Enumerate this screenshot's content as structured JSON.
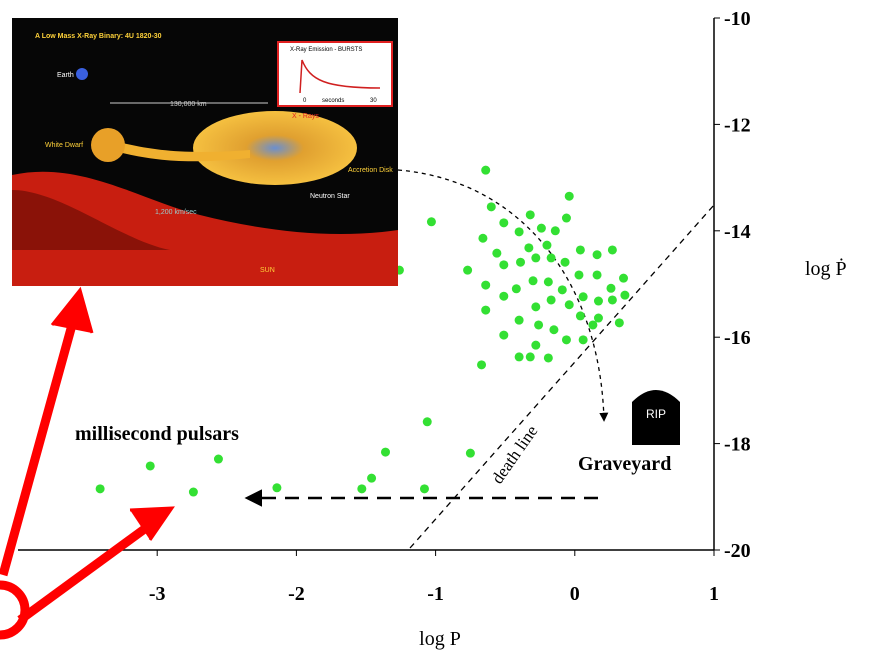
{
  "chart_data": {
    "type": "scatter",
    "xlabel": "log P",
    "ylabel": "log Ṗ",
    "xlim": [
      -4,
      1
    ],
    "ylim": [
      -20,
      -10
    ],
    "xticks": [
      -3,
      -2,
      -1,
      0,
      1
    ],
    "yticks": [
      -10,
      -12,
      -14,
      -16,
      -18,
      -20
    ],
    "x": [
      -3.41,
      -3.05,
      -2.74,
      -2.56,
      -2.14,
      -1.53,
      -1.46,
      -1.36,
      -1.06,
      -1.08,
      -0.75,
      -1.26,
      -0.64,
      -0.6,
      -1.03,
      -0.77,
      -0.66,
      -0.56,
      -0.64,
      -0.51,
      -0.4,
      -0.32,
      -0.24,
      -0.14,
      -0.06,
      -0.2,
      -0.04,
      -0.33,
      -0.51,
      -0.39,
      -0.28,
      -0.17,
      -0.07,
      0.04,
      0.16,
      0.27,
      -0.64,
      -0.51,
      -0.42,
      -0.3,
      -0.19,
      -0.09,
      0.03,
      0.16,
      0.26,
      0.35,
      -0.51,
      -0.4,
      -0.28,
      -0.17,
      -0.04,
      0.06,
      0.17,
      0.27,
      0.32,
      0.17,
      0.04,
      -0.26,
      -0.15,
      -0.06,
      0.06,
      -0.4,
      -0.28,
      -0.19,
      0.13,
      0.36,
      -0.67,
      -0.32
    ],
    "series": [
      {
        "color": "#33e033",
        "values": [
          -18.85,
          -18.42,
          -18.91,
          -18.29,
          -18.83,
          -18.85,
          -18.65,
          -18.16,
          -17.59,
          -18.85,
          -18.18,
          -14.74,
          -12.86,
          -13.55,
          -13.83,
          -14.74,
          -14.14,
          -14.42,
          -15.02,
          -13.85,
          -14.02,
          -13.7,
          -13.95,
          -14.0,
          -13.76,
          -14.27,
          -13.35,
          -14.32,
          -14.64,
          -14.59,
          -14.51,
          -14.51,
          -14.59,
          -14.36,
          -14.45,
          -14.36,
          -15.49,
          -15.23,
          -15.09,
          -14.94,
          -14.96,
          -15.11,
          -14.83,
          -14.83,
          -15.08,
          -14.89,
          -15.96,
          -15.68,
          -15.43,
          -15.3,
          -15.39,
          -15.24,
          -15.32,
          -15.3,
          -15.73,
          -15.64,
          -15.6,
          -15.77,
          -15.86,
          -16.05,
          -16.05,
          -16.37,
          -16.15,
          -16.39,
          -15.77,
          -15.21,
          -16.52,
          -16.37
        ]
      }
    ],
    "annotations": {
      "group": "millisecond pulsars",
      "line": "death line",
      "region": "Graveyard",
      "stone": "RIP"
    },
    "inset": {
      "title": "A Low Mass X-Ray Binary:  4U 1820-30",
      "plot_title": "X-Ray Emission - BURSTS",
      "plot_start": "0",
      "plot_unit": "seconds",
      "plot_end": "30",
      "rays": "X - Rays",
      "distance": "130,000 km",
      "earth": "Earth",
      "dwarf": "White Dwarf",
      "disk": "Accretion Disk",
      "star": "Neutron Star",
      "speed": "1,200 km/sec",
      "sun": "SUN"
    }
  }
}
